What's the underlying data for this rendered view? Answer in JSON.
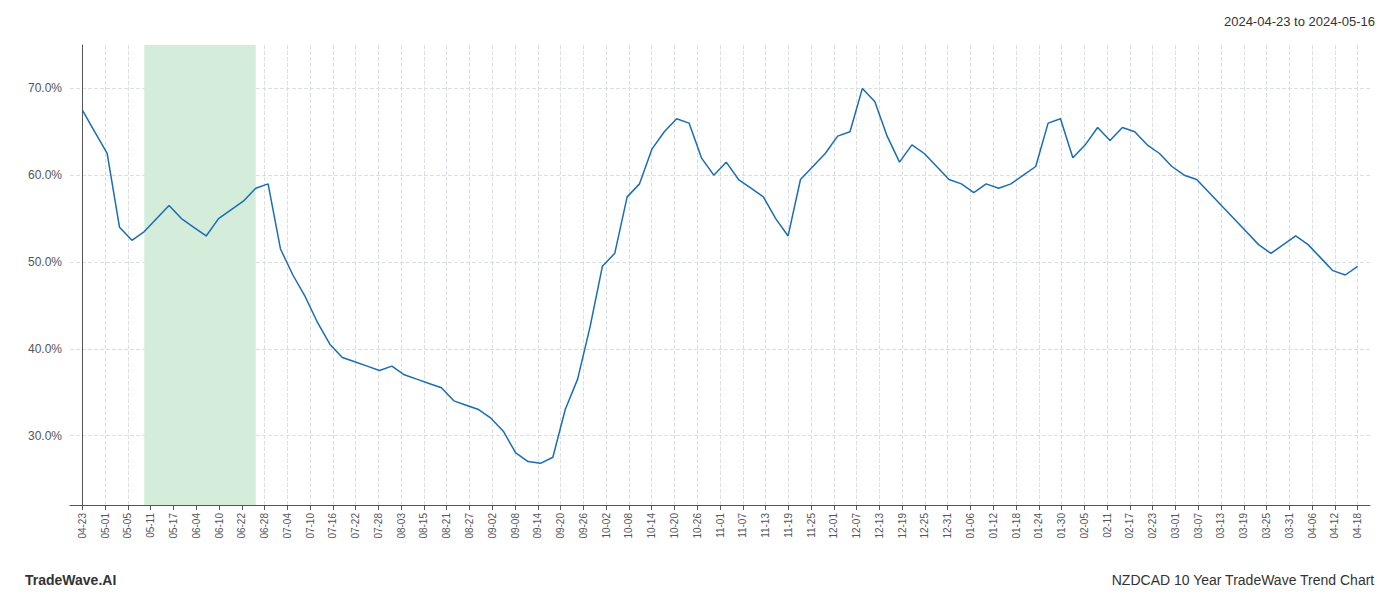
{
  "chart_data": {
    "type": "line",
    "title": "NZDCAD 10 Year TradeWave Trend Chart",
    "subtitle": "2024-04-23 to 2024-05-16",
    "annotations": [
      "TradeWave.AI"
    ],
    "color": "#1a6db5",
    "grid": true,
    "highlight": {
      "start": 5,
      "end": 14,
      "color": "#d4edda"
    },
    "x": [
      0,
      1,
      2,
      3,
      4,
      5,
      6,
      7,
      8,
      9,
      10,
      11,
      12,
      13,
      14,
      15,
      16,
      17,
      18,
      19,
      20,
      21,
      22,
      23,
      24,
      25,
      26,
      27,
      28,
      29,
      30,
      31,
      32,
      33,
      34,
      35,
      36,
      37,
      38,
      39,
      40,
      41,
      42,
      43,
      44,
      45,
      46,
      47,
      48,
      49,
      50,
      51,
      52,
      53,
      54,
      55,
      56,
      57,
      58,
      59,
      60,
      61,
      62,
      63,
      64,
      65,
      66,
      67,
      68,
      69,
      70,
      71,
      72,
      73,
      74,
      75,
      76,
      77,
      78,
      79,
      80,
      81,
      82,
      83,
      84,
      85,
      86,
      87,
      88,
      89,
      90,
      91,
      92,
      93,
      94,
      95,
      96,
      97,
      98,
      99,
      100,
      101,
      102,
      103
    ],
    "values": [
      67.5,
      65.0,
      62.5,
      54.0,
      52.5,
      53.5,
      55.0,
      56.5,
      55.0,
      54.0,
      53.0,
      55.0,
      56.0,
      57.0,
      58.5,
      59.0,
      51.5,
      48.5,
      46.0,
      43.0,
      40.5,
      39.0,
      38.5,
      38.0,
      37.5,
      38.0,
      37.0,
      36.5,
      36.0,
      35.5,
      34.0,
      33.5,
      33.0,
      32.0,
      30.5,
      28.0,
      27.0,
      26.8,
      27.5,
      33.0,
      36.5,
      42.5,
      49.5,
      51.0,
      57.5,
      59.0,
      63.0,
      65.0,
      66.5,
      66.0,
      62.0,
      60.0,
      61.5,
      59.5,
      58.5,
      57.5,
      55.0,
      53.0,
      59.5,
      61.0,
      62.5,
      64.5,
      65.0,
      70.0,
      68.5,
      64.5,
      61.5,
      63.5,
      62.5,
      61.0,
      59.5,
      59.0,
      58.0,
      59.0,
      58.5,
      59.0,
      60.0,
      61.0,
      66.0,
      66.5,
      62.0,
      63.5,
      65.5,
      64.0,
      65.5,
      65.0,
      63.5,
      62.5,
      61.0,
      60.0,
      59.5,
      58.0,
      56.5,
      55.0,
      53.5,
      52.0,
      51.0,
      52.0,
      53.0,
      52.0,
      50.5,
      49.0,
      48.5,
      49.5
    ],
    "xlim": [
      -1,
      104
    ],
    "xticks": [
      {
        "value": 0,
        "label": "04-23"
      },
      {
        "value": 1.839285714285714,
        "label": "05-01"
      },
      {
        "value": 3.678571428571428,
        "label": "05-05"
      },
      {
        "value": 5.517857142857142,
        "label": "05-11"
      },
      {
        "value": 7.357142857142857,
        "label": "05-17"
      },
      {
        "value": 9.196428571428571,
        "label": "06-04"
      },
      {
        "value": 11.035714285714285,
        "label": "06-10"
      },
      {
        "value": 12.875,
        "label": "06-22"
      },
      {
        "value": 14.714285714285714,
        "label": "06-28"
      },
      {
        "value": 16.553571428571427,
        "label": "07-04"
      },
      {
        "value": 18.392857142857142,
        "label": "07-10"
      },
      {
        "value": 20.232142857142858,
        "label": "07-16"
      },
      {
        "value": 22.07142857142857,
        "label": "07-22"
      },
      {
        "value": 23.910714285714285,
        "label": "07-28"
      },
      {
        "value": 25.75,
        "label": "08-03"
      },
      {
        "value": 27.589285714285715,
        "label": "08-15"
      },
      {
        "value": 29.428571428571427,
        "label": "08-21"
      },
      {
        "value": 31.267857142857142,
        "label": "08-27"
      },
      {
        "value": 33.107142857142854,
        "label": "09-02"
      },
      {
        "value": 34.94642857142857,
        "label": "09-08"
      },
      {
        "value": 36.785714285714285,
        "label": "09-14"
      },
      {
        "value": 38.625,
        "label": "09-20"
      },
      {
        "value": 40.464285714285715,
        "label": "09-26"
      },
      {
        "value": 42.30357142857143,
        "label": "10-02"
      },
      {
        "value": 44.14285714285714,
        "label": "10-08"
      },
      {
        "value": 45.982142857142854,
        "label": "10-14"
      },
      {
        "value": 47.82142857142857,
        "label": "10-20"
      },
      {
        "value": 49.660714285714285,
        "label": "10-26"
      },
      {
        "value": 51.5,
        "label": "11-01"
      },
      {
        "value": 53.339285714285715,
        "label": "11-07"
      },
      {
        "value": 55.17857142857143,
        "label": "11-13"
      },
      {
        "value": 57.01785714285714,
        "label": "11-19"
      },
      {
        "value": 58.857142857142854,
        "label": "11-25"
      },
      {
        "value": 60.69642857142857,
        "label": "12-01"
      },
      {
        "value": 62.535714285714285,
        "label": "12-07"
      },
      {
        "value": 64.375,
        "label": "12-13"
      },
      {
        "value": 66.21428571428571,
        "label": "12-19"
      },
      {
        "value": 68.05357142857143,
        "label": "12-25"
      },
      {
        "value": 69.89285714285714,
        "label": "12-31"
      },
      {
        "value": 71.73214285714286,
        "label": "01-06"
      },
      {
        "value": 73.57142857142857,
        "label": "01-12"
      },
      {
        "value": 75.41071428571429,
        "label": "01-18"
      },
      {
        "value": 77.25,
        "label": "01-24"
      },
      {
        "value": 79.08928571428571,
        "label": "01-30"
      },
      {
        "value": 80.92857142857143,
        "label": "02-05"
      },
      {
        "value": 82.76785714285714,
        "label": "02-11"
      },
      {
        "value": 84.60714285714286,
        "label": "02-17"
      },
      {
        "value": 86.44642857142857,
        "label": "02-23"
      },
      {
        "value": 88.28571428571429,
        "label": "03-01"
      },
      {
        "value": 90.125,
        "label": "03-07"
      },
      {
        "value": 91.96428571428571,
        "label": "03-13"
      },
      {
        "value": 93.80357142857143,
        "label": "03-19"
      },
      {
        "value": 95.64285714285714,
        "label": "03-25"
      },
      {
        "value": 97.48214285714286,
        "label": "03-31"
      },
      {
        "value": 99.32142857142857,
        "label": "04-06"
      },
      {
        "value": 101.16071428571429,
        "label": "04-12"
      },
      {
        "value": 103,
        "label": "04-18"
      }
    ],
    "ylim": [
      22,
      75
    ],
    "yticks": [
      {
        "value": 30,
        "label": "30.0%"
      },
      {
        "value": 40,
        "label": "40.0%"
      },
      {
        "value": 50,
        "label": "50.0%"
      },
      {
        "value": 60,
        "label": "60.0%"
      },
      {
        "value": 70,
        "label": "70.0%"
      }
    ]
  }
}
